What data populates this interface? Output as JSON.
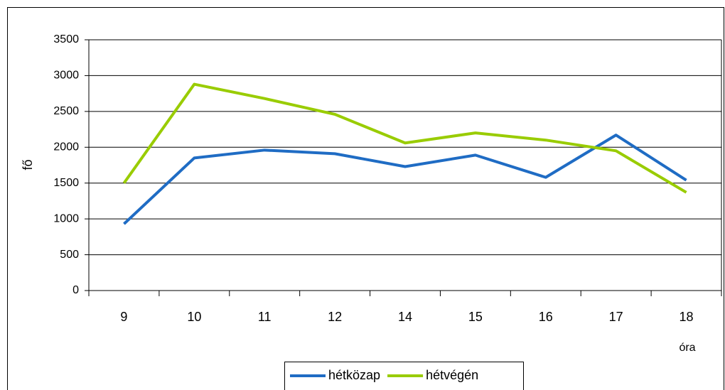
{
  "chart_data": {
    "type": "line",
    "categories": [
      "9",
      "10",
      "11",
      "12",
      "14",
      "15",
      "16",
      "17",
      "18"
    ],
    "series": [
      {
        "name": "hétközap",
        "color": "#1f6cc4",
        "values": [
          930,
          1850,
          1960,
          1910,
          1730,
          1890,
          1580,
          2170,
          1540
        ]
      },
      {
        "name": "hétvégén",
        "color": "#99cc00",
        "values": [
          1500,
          2880,
          2680,
          2460,
          2060,
          2200,
          2100,
          1950,
          1370
        ]
      }
    ],
    "ylabel": "fő",
    "xlabel": "óra",
    "ylim": [
      0,
      3500
    ],
    "yticks": [
      0,
      500,
      1000,
      1500,
      2000,
      2500,
      3000,
      3500
    ],
    "grid": true,
    "legend": "bottom"
  }
}
